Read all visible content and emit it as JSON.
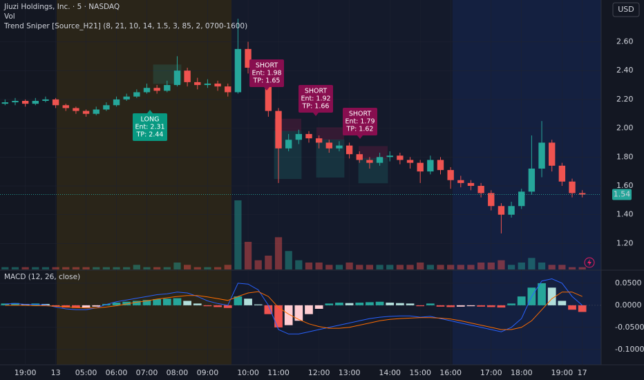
{
  "chart_data": {
    "type": "candlestick",
    "title": "Jiuzi Holdings, Inc. · 5 · NASDAQ",
    "volume_label": "Vol",
    "indicator_label": "Trend Sniper [Source_H21] (8, 21, 10, 14, 1.5, 3, 85, 2, 0700-1600)",
    "currency": "USD",
    "up_color": "#26a69a",
    "down_color": "#ef5350",
    "categories": [
      null,
      null,
      "19:00",
      null,
      null,
      "13",
      null,
      null,
      "05:00",
      null,
      null,
      "06:00",
      null,
      null,
      "07:00",
      null,
      null,
      "08:00",
      null,
      null,
      "09:00",
      null,
      null,
      null,
      "10:00",
      null,
      null,
      "11:00",
      null,
      null,
      null,
      "12:00",
      null,
      null,
      "13:00",
      null,
      null,
      null,
      "14:00",
      null,
      null,
      "15:00",
      null,
      null,
      "16:00",
      null,
      null,
      null,
      "17:00",
      null,
      null,
      "18:00",
      null,
      null,
      null,
      "19:00",
      null,
      "17"
    ],
    "open": [
      2.17,
      2.18,
      2.19,
      2.17,
      2.19,
      2.2,
      2.16,
      2.14,
      2.12,
      2.1,
      2.13,
      2.16,
      2.2,
      2.22,
      2.25,
      2.28,
      2.26,
      2.3,
      2.4,
      2.32,
      2.3,
      2.31,
      2.29,
      2.25,
      2.55,
      2.42,
      2.36,
      2.12,
      1.86,
      1.92,
      1.96,
      1.93,
      1.9,
      1.86,
      1.88,
      1.82,
      1.78,
      1.76,
      1.8,
      1.81,
      1.78,
      1.76,
      1.7,
      1.78,
      1.71,
      1.64,
      1.62,
      1.6,
      1.55,
      1.46,
      1.4,
      1.46,
      1.56,
      1.72,
      1.9,
      1.74,
      1.63,
      1.55
    ],
    "high": [
      2.2,
      2.21,
      2.2,
      2.21,
      2.22,
      2.21,
      2.17,
      2.15,
      2.13,
      2.15,
      2.18,
      2.22,
      2.24,
      2.27,
      2.31,
      2.3,
      2.33,
      2.5,
      2.42,
      2.35,
      2.34,
      2.33,
      2.31,
      2.76,
      2.6,
      2.45,
      2.38,
      2.14,
      1.96,
      1.99,
      1.98,
      1.95,
      1.92,
      1.91,
      1.9,
      1.84,
      1.8,
      1.83,
      1.84,
      1.83,
      1.8,
      1.78,
      1.81,
      1.8,
      1.73,
      1.67,
      1.64,
      1.62,
      1.57,
      1.48,
      1.49,
      1.58,
      1.95,
      2.05,
      1.92,
      1.76,
      1.65,
      1.57
    ],
    "low": [
      2.16,
      2.16,
      2.15,
      2.16,
      2.18,
      2.14,
      2.12,
      2.1,
      2.08,
      2.09,
      2.12,
      2.15,
      2.19,
      2.21,
      2.24,
      2.24,
      2.25,
      2.29,
      2.29,
      2.27,
      2.28,
      2.26,
      2.22,
      2.24,
      2.38,
      2.32,
      2.08,
      1.62,
      1.84,
      1.89,
      1.9,
      1.86,
      1.83,
      1.84,
      1.79,
      1.76,
      1.72,
      1.74,
      1.77,
      1.75,
      1.72,
      1.62,
      1.68,
      1.68,
      1.58,
      1.59,
      1.57,
      1.52,
      1.43,
      1.27,
      1.38,
      1.44,
      1.54,
      1.66,
      1.7,
      1.6,
      1.52,
      1.52
    ],
    "close": [
      2.18,
      2.19,
      2.17,
      2.19,
      2.2,
      2.16,
      2.14,
      2.12,
      2.1,
      2.13,
      2.16,
      2.2,
      2.22,
      2.25,
      2.28,
      2.26,
      2.3,
      2.4,
      2.32,
      2.3,
      2.31,
      2.29,
      2.25,
      2.55,
      2.42,
      2.36,
      2.12,
      1.86,
      1.92,
      1.96,
      1.93,
      1.9,
      1.86,
      1.88,
      1.82,
      1.78,
      1.76,
      1.8,
      1.81,
      1.78,
      1.76,
      1.7,
      1.78,
      1.71,
      1.64,
      1.62,
      1.6,
      1.55,
      1.46,
      1.4,
      1.46,
      1.56,
      1.72,
      1.9,
      1.74,
      1.63,
      1.55,
      1.54
    ],
    "volume": [
      1,
      1,
      1,
      1,
      1,
      1,
      1,
      1,
      1,
      1,
      1,
      1,
      1,
      2,
      1,
      1,
      1,
      3,
      2,
      1,
      1,
      1,
      2,
      30,
      12,
      4,
      6,
      14,
      8,
      4,
      3,
      3,
      2,
      2,
      3,
      2,
      2,
      2,
      2,
      2,
      2,
      3,
      2,
      2,
      2,
      2,
      2,
      3,
      3,
      4,
      2,
      3,
      5,
      3,
      2,
      2,
      1,
      1
    ],
    "ylim": [
      1.02,
      2.89
    ],
    "yticks": [
      {
        "value": 1.2,
        "label": "1.20"
      },
      {
        "value": 1.4,
        "label": "1.40"
      },
      {
        "value": 1.6,
        "label": "1.60"
      },
      {
        "value": 1.8,
        "label": "1.80"
      },
      {
        "value": 2.0,
        "label": "2.00"
      },
      {
        "value": 2.2,
        "label": "2.20"
      },
      {
        "value": 2.4,
        "label": "2.40"
      },
      {
        "value": 2.6,
        "label": "2.60"
      }
    ],
    "last_price": {
      "value": 1.54,
      "label": "1.54"
    },
    "signals": [
      {
        "side": "LONG",
        "entry": 2.31,
        "entry_label": "Ent: 2.31",
        "tp": 2.44,
        "tp_label": "TP: 2.44"
      },
      {
        "side": "SHORT",
        "entry": 1.98,
        "entry_label": "Ent: 1.98",
        "tp": 1.65,
        "tp_label": "TP: 1.65"
      },
      {
        "side": "SHORT",
        "entry": 1.92,
        "entry_label": "Ent: 1.92",
        "tp": 1.66,
        "tp_label": "TP: 1.66"
      },
      {
        "side": "SHORT",
        "entry": 1.79,
        "entry_label": "Ent: 1.79",
        "tp": 1.62,
        "tp_label": "TP: 1.62"
      }
    ],
    "macd": {
      "title": "MACD (12, 26, close)",
      "ylim": [
        -0.13,
        0.078
      ],
      "yticks": [
        {
          "value": -0.1,
          "label": "-0.1000"
        },
        {
          "value": -0.05,
          "label": "-0.0500"
        },
        {
          "value": 0,
          "label": "0.0000"
        },
        {
          "value": 0.05,
          "label": "0.0500"
        }
      ],
      "histogram": [
        0.004,
        0.005,
        0.003,
        0.004,
        0.003,
        -0.003,
        -0.005,
        -0.006,
        -0.005,
        -0.003,
        0.003,
        0.006,
        0.008,
        0.01,
        0.012,
        0.014,
        0.015,
        0.016,
        0.01,
        0.004,
        -0.002,
        -0.004,
        -0.006,
        0.02,
        0.015,
        0.002,
        -0.02,
        -0.05,
        -0.045,
        -0.035,
        -0.02,
        -0.008,
        0.004,
        0.006,
        0.005,
        0.006,
        0.007,
        0.008,
        0.006,
        0.005,
        0.004,
        -0.002,
        0.004,
        -0.003,
        -0.004,
        -0.003,
        -0.002,
        -0.003,
        -0.004,
        -0.005,
        0.004,
        0.02,
        0.04,
        0.05,
        0.04,
        0.01,
        -0.01,
        -0.015
      ],
      "series": [
        {
          "name": "MACD",
          "color": "#2962ff",
          "values": [
            0.003,
            0.004,
            0.002,
            0.002,
            0.001,
            -0.004,
            -0.008,
            -0.01,
            -0.01,
            -0.006,
            0.002,
            0.008,
            0.012,
            0.016,
            0.02,
            0.024,
            0.026,
            0.03,
            0.028,
            0.02,
            0.01,
            0.004,
            0.0,
            0.05,
            0.048,
            0.035,
            0.0,
            -0.055,
            -0.065,
            -0.065,
            -0.06,
            -0.055,
            -0.05,
            -0.045,
            -0.04,
            -0.035,
            -0.03,
            -0.027,
            -0.025,
            -0.024,
            -0.024,
            -0.027,
            -0.025,
            -0.03,
            -0.035,
            -0.04,
            -0.045,
            -0.05,
            -0.055,
            -0.06,
            -0.05,
            -0.03,
            0.02,
            0.055,
            0.06,
            0.05,
            0.02,
            0.0
          ]
        },
        {
          "name": "Signal",
          "color": "#ff6d00",
          "values": [
            0.0,
            0.0,
            0.0,
            -0.001,
            -0.001,
            -0.002,
            -0.003,
            -0.005,
            -0.006,
            -0.006,
            -0.004,
            -0.001,
            0.003,
            0.007,
            0.01,
            0.014,
            0.017,
            0.02,
            0.022,
            0.022,
            0.019,
            0.015,
            0.011,
            0.02,
            0.028,
            0.031,
            0.02,
            -0.005,
            -0.02,
            -0.032,
            -0.042,
            -0.048,
            -0.052,
            -0.052,
            -0.05,
            -0.045,
            -0.04,
            -0.035,
            -0.032,
            -0.03,
            -0.029,
            -0.028,
            -0.028,
            -0.029,
            -0.031,
            -0.035,
            -0.04,
            -0.045,
            -0.05,
            -0.055,
            -0.055,
            -0.05,
            -0.035,
            -0.01,
            0.015,
            0.03,
            0.03,
            0.02
          ]
        }
      ]
    }
  }
}
